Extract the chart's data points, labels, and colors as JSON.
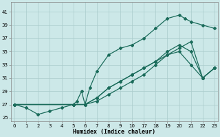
{
  "bg_color": "#cce8e8",
  "grid_color": "#aacccc",
  "line_color": "#1a6b5a",
  "marker_color": "#1a6b5a",
  "xlabel": "Humidex (Indice chaleur)",
  "ylim": [
    24.5,
    42.5
  ],
  "yticks": [
    25,
    27,
    29,
    31,
    33,
    35,
    37,
    39,
    41
  ],
  "xlim": [
    -0.3,
    17.3
  ],
  "xtick_labels": [
    "0",
    "1",
    "2",
    "3",
    "4",
    "5",
    "6",
    "7",
    "8",
    "9",
    "10",
    "17",
    "18",
    "19",
    "20",
    "21",
    "22",
    "23"
  ],
  "xtick_pos": [
    0,
    1,
    2,
    3,
    4,
    5,
    6,
    7,
    8,
    9,
    10,
    11,
    12,
    13,
    14,
    15,
    16,
    17
  ],
  "line1_x": [
    0,
    1,
    2,
    3,
    4,
    5,
    5.3,
    5.7,
    6,
    6.4,
    7,
    8,
    9,
    10,
    11,
    12,
    13,
    14,
    14.5,
    15,
    16,
    17
  ],
  "line1_y": [
    27,
    26.5,
    25.5,
    26,
    26.5,
    27,
    27.5,
    29,
    27,
    29.5,
    32,
    34.5,
    35.5,
    36,
    37,
    38.5,
    40,
    40.5,
    40,
    39.5,
    39,
    38.5
  ],
  "line2_x": [
    0,
    5,
    6,
    7,
    8,
    9,
    10,
    11,
    12,
    13,
    14,
    15,
    16,
    17
  ],
  "line2_y": [
    27,
    27,
    27,
    28,
    29.5,
    30.5,
    31.5,
    32.5,
    33.5,
    34.5,
    35,
    33,
    31,
    32.5
  ],
  "line3_x": [
    0,
    5,
    6,
    7,
    8,
    9,
    10,
    11,
    12,
    13,
    14,
    15,
    16,
    17
  ],
  "line3_y": [
    27,
    27,
    27,
    28,
    29.5,
    30.5,
    31.5,
    32.5,
    33.5,
    35,
    36,
    35,
    31,
    32.5
  ],
  "line4_x": [
    0,
    5,
    6,
    7,
    8,
    9,
    10,
    11,
    12,
    13,
    14,
    15,
    16,
    17
  ],
  "line4_y": [
    27,
    27,
    27,
    27.5,
    28.5,
    29.5,
    30.5,
    31.5,
    33,
    34.5,
    35.5,
    36.5,
    31,
    32.5
  ]
}
